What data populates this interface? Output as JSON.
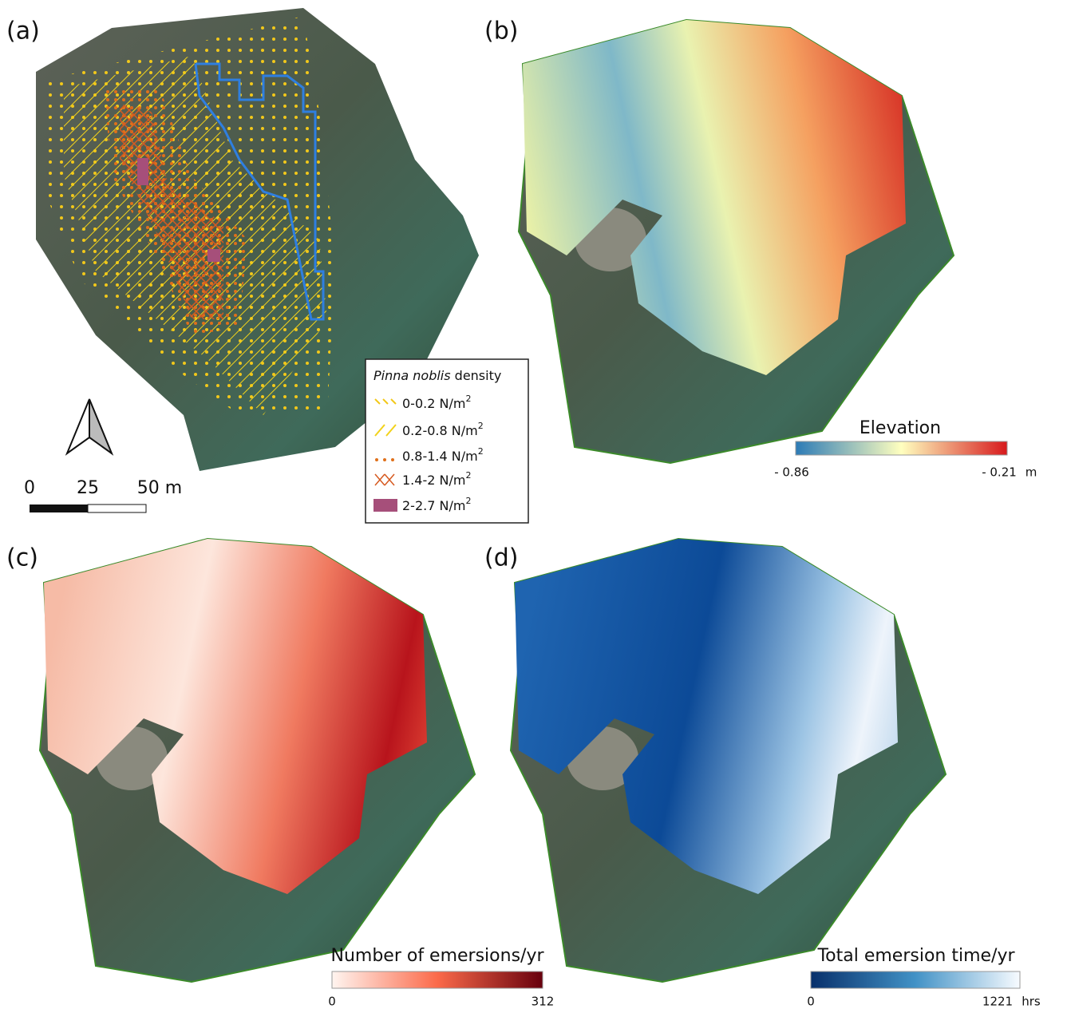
{
  "panels": [
    {
      "label": "(a)"
    },
    {
      "label": "(b)",
      "colorbar": {
        "title": "Elevation",
        "min": "- 0.86",
        "max": "- 0.21",
        "unit": "m"
      }
    },
    {
      "label": "(c)",
      "colorbar": {
        "title": "Number of emersions/yr",
        "min": "0",
        "max": "312"
      }
    },
    {
      "label": "(d)",
      "colorbar": {
        "title": "Total emersion time/yr",
        "min": "0",
        "max": "1221",
        "unit": "hrs"
      }
    }
  ],
  "scale_bar": {
    "labels": [
      "0",
      "25",
      "50 m"
    ]
  },
  "density_legend": {
    "title_italic": "Pinna noblis",
    "title_rest": " density",
    "items": [
      {
        "text": "0-0.2 N/m",
        "sup": "2"
      },
      {
        "text": "0.2-0.8 N/m",
        "sup": "2"
      },
      {
        "text": "0.8-1.4 N/m",
        "sup": "2"
      },
      {
        "text": "1.4-2 N/m",
        "sup": "2"
      },
      {
        "text": "2-2.7 N/m",
        "sup": "2"
      }
    ]
  }
}
